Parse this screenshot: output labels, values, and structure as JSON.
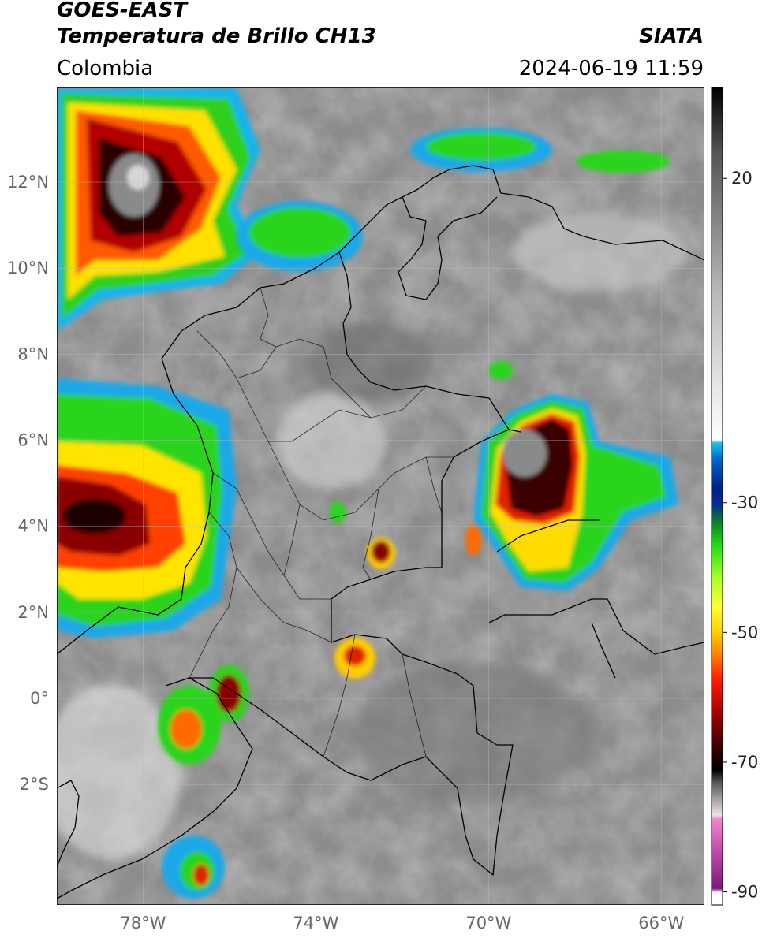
{
  "header": {
    "satellite": "GOES-EAST",
    "product": "Temperatura de Brillo CH13",
    "organization": "SIATA",
    "region": "Colombia",
    "datetime": "2024-06-19 11:59"
  },
  "map": {
    "lon_range": [
      -80,
      -65
    ],
    "lat_range": [
      -4.8,
      14.2
    ],
    "lon_ticks": [
      {
        "lon": -78,
        "label": "78°W"
      },
      {
        "lon": -74,
        "label": "74°W"
      },
      {
        "lon": -70,
        "label": "70°W"
      },
      {
        "lon": -66,
        "label": "66°W"
      }
    ],
    "lat_ticks": [
      {
        "lat": 12,
        "label": "12°N"
      },
      {
        "lat": 10,
        "label": "10°N"
      },
      {
        "lat": 8,
        "label": "8°N"
      },
      {
        "lat": 6,
        "label": "6°N"
      },
      {
        "lat": 4,
        "label": "4°N"
      },
      {
        "lat": 2,
        "label": "2°N"
      },
      {
        "lat": 0,
        "label": "0°"
      },
      {
        "lat": -2,
        "label": "2°S"
      }
    ]
  },
  "colorbar": {
    "range": [
      -92,
      34
    ],
    "ticks": [
      {
        "value": 20,
        "label": "20"
      },
      {
        "value": -30,
        "label": "-30"
      },
      {
        "value": -50,
        "label": "-50"
      },
      {
        "value": -70,
        "label": "-70"
      },
      {
        "value": -90,
        "label": "-90"
      }
    ]
  }
}
